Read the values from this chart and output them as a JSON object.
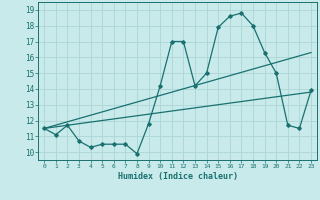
{
  "xlabel": "Humidex (Indice chaleur)",
  "bg_color": "#c8eaea",
  "grid_color": "#b0d8d8",
  "line_color": "#1a7070",
  "xlim": [
    -0.5,
    23.5
  ],
  "ylim": [
    9.5,
    19.5
  ],
  "xticks": [
    0,
    1,
    2,
    3,
    4,
    5,
    6,
    7,
    8,
    9,
    10,
    11,
    12,
    13,
    14,
    15,
    16,
    17,
    18,
    19,
    20,
    21,
    22,
    23
  ],
  "yticks": [
    10,
    11,
    12,
    13,
    14,
    15,
    16,
    17,
    18,
    19
  ],
  "line1_x": [
    0,
    1,
    2,
    3,
    4,
    5,
    6,
    7,
    8,
    9,
    10,
    11,
    12,
    13,
    14,
    15,
    16,
    17,
    18,
    19,
    20,
    21,
    22,
    23
  ],
  "line1_y": [
    11.5,
    11.1,
    11.7,
    10.7,
    10.3,
    10.5,
    10.5,
    10.5,
    9.9,
    11.8,
    14.2,
    17.0,
    17.0,
    14.2,
    15.0,
    17.9,
    18.6,
    18.8,
    18.0,
    16.3,
    15.0,
    11.7,
    11.5,
    13.9
  ],
  "line2_x": [
    0,
    23
  ],
  "line2_y": [
    11.5,
    16.3
  ],
  "line3_x": [
    0,
    23
  ],
  "line3_y": [
    11.5,
    13.8
  ]
}
